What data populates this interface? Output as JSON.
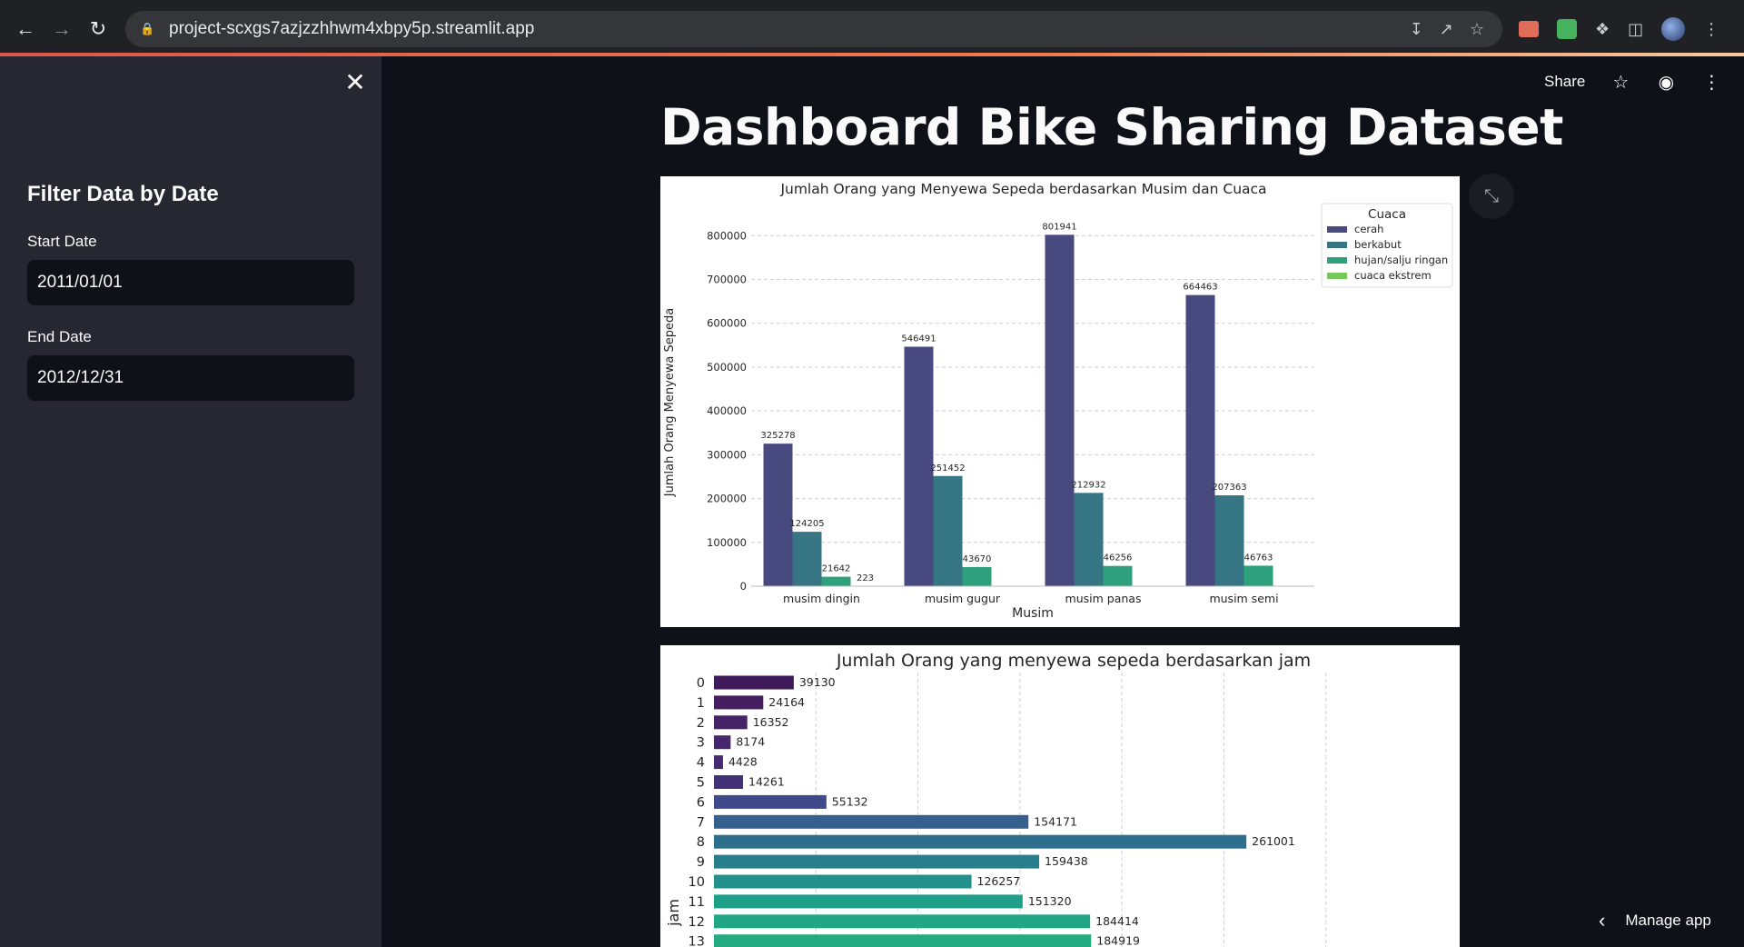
{
  "browser": {
    "url": "project-scxgs7azjzzhhwm4xbpy5p.streamlit.app"
  },
  "sidebar": {
    "title": "Filter Data by Date",
    "start_label": "Start Date",
    "start_value": "2011/01/01",
    "end_label": "End Date",
    "end_value": "2012/12/31"
  },
  "header": {
    "share_label": "Share"
  },
  "page": {
    "title": "Dashboard Bike Sharing Dataset",
    "manage_app": "Manage app"
  },
  "colors": {
    "cerah": "#48497f",
    "berkabut": "#357584",
    "hujan": "#2fa07c",
    "ekstrem": "#74c85c"
  },
  "chart_data": [
    {
      "type": "bar",
      "title": "Jumlah Orang yang Menyewa Sepeda berdasarkan Musim dan Cuaca",
      "xlabel": "Musim",
      "ylabel": "Jumlah Orang Menyewa Sepeda",
      "categories": [
        "musim dingin",
        "musim gugur",
        "musim panas",
        "musim semi"
      ],
      "yticks": [
        0,
        100000,
        200000,
        300000,
        400000,
        500000,
        600000,
        700000,
        800000
      ],
      "ylim": [
        0,
        840000
      ],
      "grid": "horizontal-dashed",
      "legend_title": "Cuaca",
      "legend_position": "top-right",
      "series": [
        {
          "name": "cerah",
          "values": [
            325278,
            546491,
            801941,
            664463
          ],
          "labels": [
            "325278",
            "546491",
            "801941",
            "664463"
          ]
        },
        {
          "name": "berkabut",
          "values": [
            124205,
            251452,
            212932,
            207363
          ],
          "labels": [
            "124205",
            "251452",
            "212932",
            "207363"
          ]
        },
        {
          "name": "hujan/salju ringan",
          "values": [
            21642,
            43670,
            46256,
            46763
          ],
          "labels": [
            "21642",
            "43670",
            "46256",
            "46763"
          ]
        },
        {
          "name": "cuaca ekstrem",
          "values": [
            223,
            0,
            0,
            0
          ],
          "labels": [
            "223",
            "",
            "",
            ""
          ]
        }
      ]
    },
    {
      "type": "bar",
      "orientation": "horizontal",
      "title": "Jumlah Orang yang menyewa sepeda berdasarkan jam",
      "ylabel": "jam",
      "xlim": [
        0,
        350000
      ],
      "grid": "vertical-dashed",
      "categories": [
        "0",
        "1",
        "2",
        "3",
        "4",
        "5",
        "6",
        "7",
        "8",
        "9",
        "10",
        "11",
        "12",
        "13"
      ],
      "values": [
        39130,
        24164,
        16352,
        8174,
        4428,
        14261,
        55132,
        154171,
        261001,
        159438,
        126257,
        151320,
        184414,
        184919
      ],
      "labels": [
        "39130",
        "24164",
        "16352",
        "8174",
        "4428",
        "14261",
        "55132",
        "154171",
        "261001",
        "159438",
        "126257",
        "151320",
        "184414",
        "184919"
      ]
    }
  ]
}
